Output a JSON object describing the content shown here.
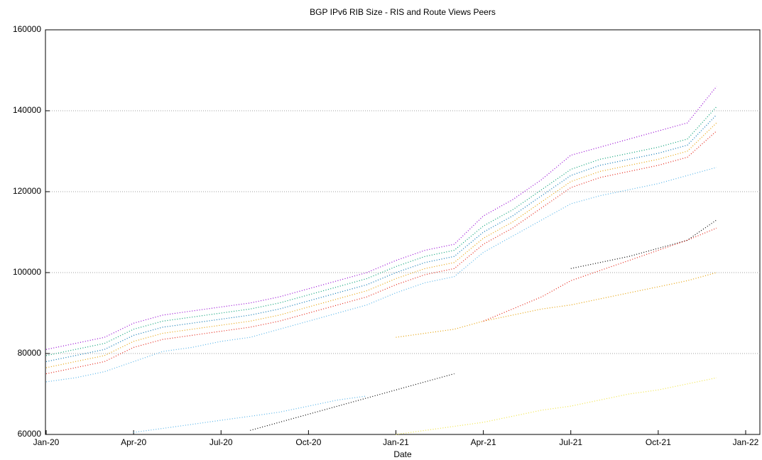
{
  "chart_data": {
    "type": "line",
    "title": "BGP IPv6 RIB Size - RIS and Route Views Peers",
    "xlabel": "Date",
    "x": [
      "2020-01",
      "2020-02",
      "2020-03",
      "2020-04",
      "2020-05",
      "2020-06",
      "2020-07",
      "2020-08",
      "2020-09",
      "2020-10",
      "2020-11",
      "2020-12",
      "2021-01",
      "2021-02",
      "2021-03",
      "2021-04",
      "2021-05",
      "2021-06",
      "2021-07",
      "2021-08",
      "2021-09",
      "2021-10",
      "2021-11",
      "2021-12"
    ],
    "xlim": [
      "2020-01",
      "2022-01"
    ],
    "xticks": [
      {
        "value": "2020-01",
        "label": "Jan-20"
      },
      {
        "value": "2020-04",
        "label": "Apr-20"
      },
      {
        "value": "2020-07",
        "label": "Jul-20"
      },
      {
        "value": "2020-10",
        "label": "Oct-20"
      },
      {
        "value": "2021-01",
        "label": "Jan-21"
      },
      {
        "value": "2021-04",
        "label": "Apr-21"
      },
      {
        "value": "2021-07",
        "label": "Jul-21"
      },
      {
        "value": "2021-10",
        "label": "Oct-21"
      },
      {
        "value": "2022-01",
        "label": "Jan-22"
      }
    ],
    "ylim": [
      60000,
      160000
    ],
    "yticks": [
      60000,
      80000,
      100000,
      120000,
      140000,
      160000
    ],
    "grid": true,
    "series": [
      {
        "color": "#9400d3",
        "values": [
          81000,
          82500,
          84000,
          87500,
          89500,
          90500,
          91500,
          92500,
          94000,
          96000,
          98000,
          100000,
          103000,
          105500,
          107000,
          114000,
          118000,
          123000,
          129000,
          131000,
          133000,
          135000,
          137000,
          146000
        ]
      },
      {
        "color": "#009e73",
        "values": [
          79500,
          81000,
          82500,
          86000,
          88000,
          89000,
          90000,
          91000,
          92500,
          94500,
          96500,
          98500,
          101500,
          104000,
          105500,
          111500,
          115500,
          120500,
          125500,
          128000,
          129500,
          131000,
          133000,
          141000
        ]
      },
      {
        "color": "#0072b2",
        "values": [
          78000,
          79500,
          81000,
          84500,
          86500,
          87500,
          88500,
          89500,
          91000,
          93000,
          95000,
          97000,
          100000,
          102500,
          104000,
          110000,
          114000,
          119000,
          124000,
          126500,
          128000,
          129500,
          131500,
          139000
        ]
      },
      {
        "color": "#e69f00",
        "values": [
          76500,
          78000,
          79500,
          83000,
          85000,
          86000,
          87000,
          88000,
          89500,
          91500,
          93500,
          95500,
          98500,
          101000,
          102500,
          108500,
          112500,
          117500,
          122500,
          125000,
          126500,
          128000,
          130000,
          137000
        ]
      },
      {
        "color": "#e51e10",
        "values": [
          75000,
          76500,
          78000,
          81500,
          83500,
          84500,
          85500,
          86500,
          88000,
          90000,
          92000,
          94000,
          97000,
          99500,
          101000,
          107000,
          111000,
          116000,
          121000,
          123500,
          125000,
          126500,
          128500,
          135000
        ]
      },
      {
        "color": "#56b4e9",
        "values": [
          73000,
          74000,
          75500,
          78000,
          80500,
          81500,
          83000,
          84000,
          86000,
          88000,
          90000,
          92000,
          95000,
          97500,
          99000,
          105000,
          109000,
          113000,
          117000,
          119000,
          120500,
          122000,
          124000,
          126000
        ]
      },
      {
        "color": "#000000",
        "values": [
          null,
          null,
          null,
          null,
          null,
          null,
          null,
          61000,
          63000,
          65000,
          67000,
          69000,
          71000,
          73000,
          75000,
          null,
          null,
          null,
          101000,
          102500,
          104000,
          106000,
          108000,
          113000
        ]
      },
      {
        "color": "#56b4e9",
        "values": [
          null,
          null,
          null,
          60500,
          61500,
          62500,
          63500,
          64500,
          65500,
          67000,
          68500,
          69500,
          null,
          null,
          null,
          null,
          null,
          null,
          null,
          null,
          null,
          null,
          null,
          null
        ]
      },
      {
        "color": "#e69f00",
        "values": [
          null,
          null,
          null,
          null,
          null,
          null,
          null,
          null,
          null,
          null,
          null,
          null,
          84000,
          85000,
          86000,
          88000,
          89500,
          91000,
          92000,
          93500,
          95000,
          96500,
          98000,
          100000
        ]
      },
      {
        "color": "#f0e442",
        "values": [
          null,
          null,
          null,
          null,
          null,
          null,
          null,
          null,
          null,
          null,
          null,
          null,
          60000,
          61000,
          62000,
          63000,
          64500,
          66000,
          67000,
          68500,
          70000,
          71000,
          72500,
          74000
        ]
      },
      {
        "color": "#e51e10",
        "values": [
          null,
          null,
          null,
          null,
          null,
          null,
          null,
          null,
          null,
          null,
          null,
          null,
          null,
          null,
          null,
          88000,
          91000,
          94000,
          98000,
          100500,
          103000,
          105500,
          108000,
          111000
        ]
      }
    ]
  }
}
